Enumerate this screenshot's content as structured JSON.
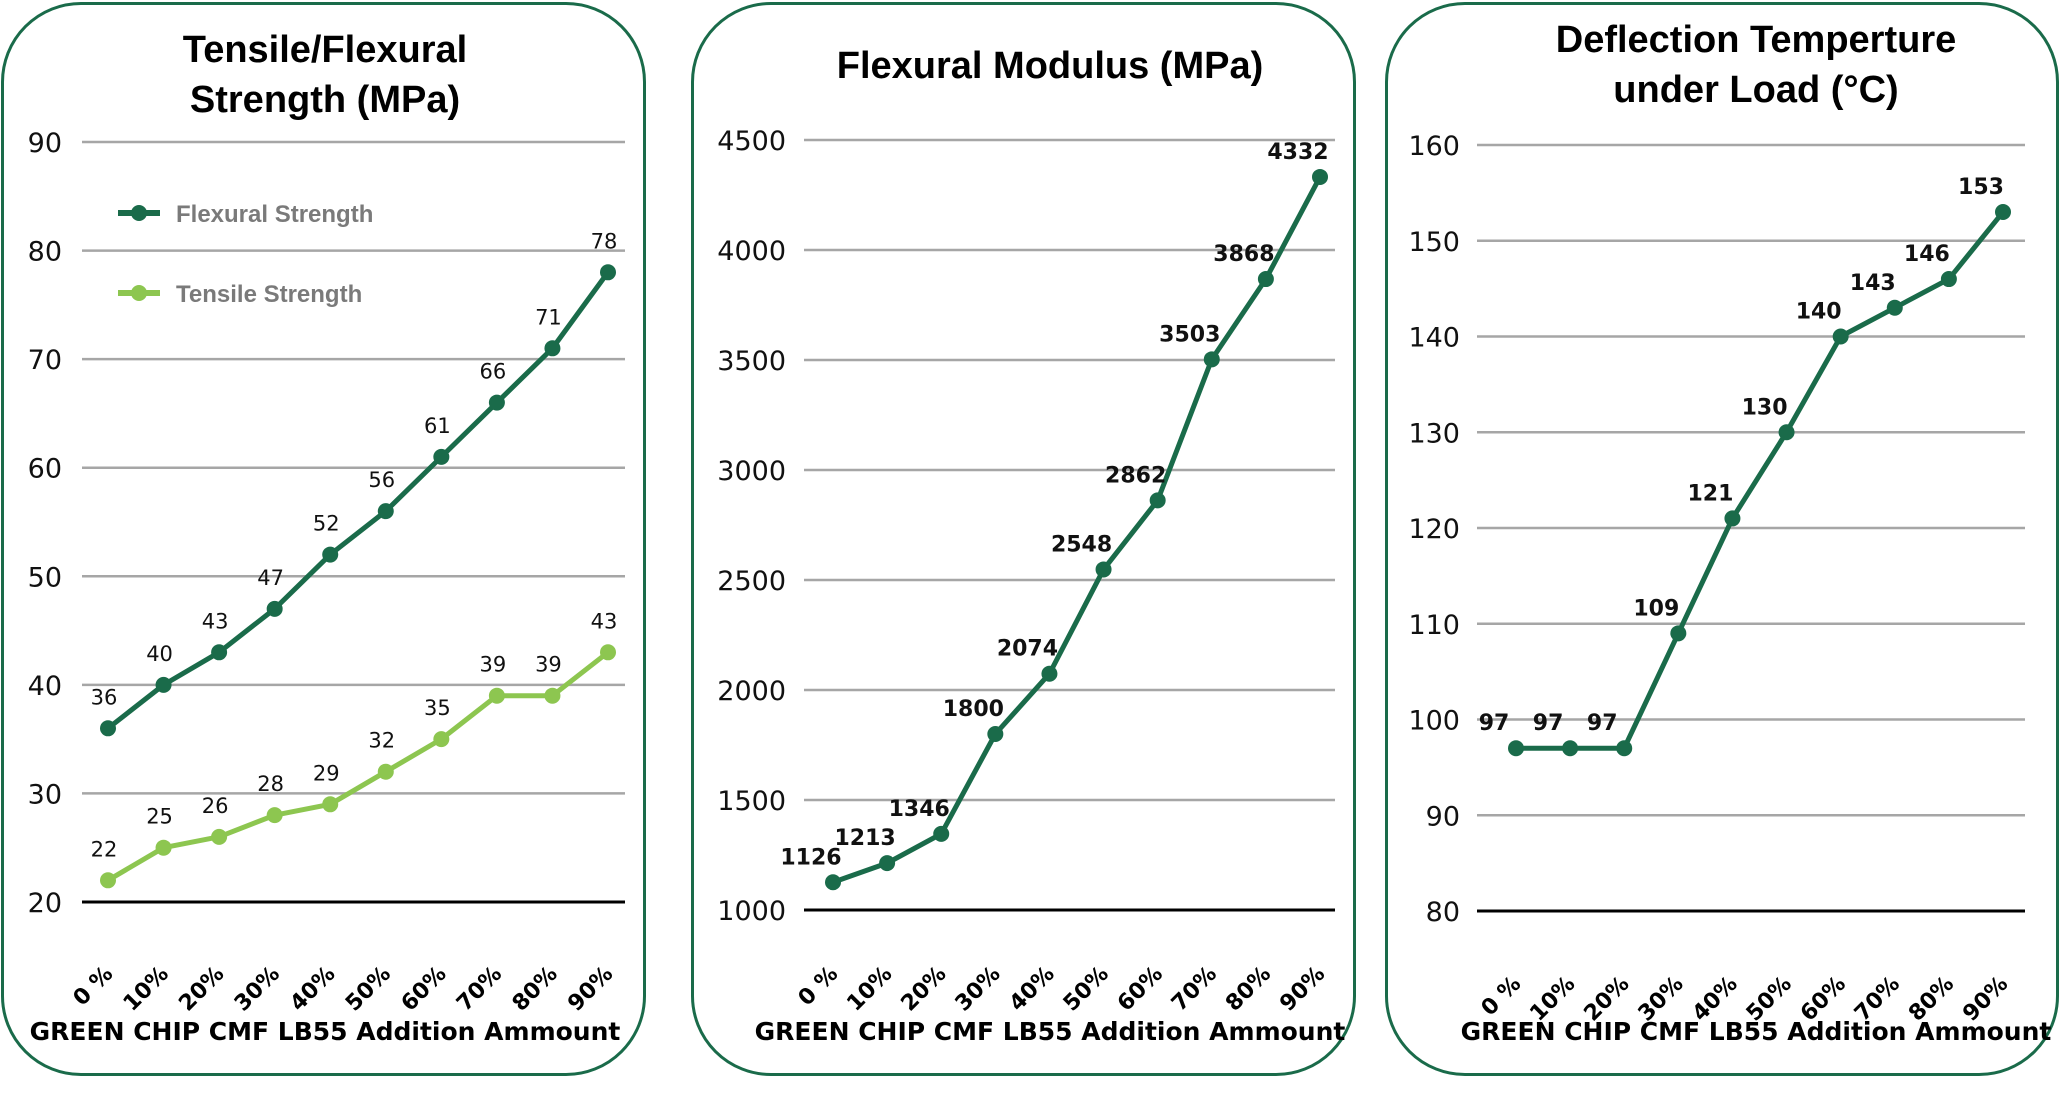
{
  "colors": {
    "dark_green": "#1a6b4a",
    "light_green": "#8dc650",
    "grid": "#a6a6a6",
    "border": "#1a6b4a"
  },
  "chart_data": [
    {
      "type": "line",
      "title": [
        "Tensile/Flexural",
        "Strength (MPa)"
      ],
      "xlabel": "GREEN CHIP CMF LB55 Addition Ammount",
      "ylabel": "",
      "categories": [
        "0 %",
        "10%",
        "20%",
        "30%",
        "40%",
        "50%",
        "60%",
        "70%",
        "80%",
        "90%"
      ],
      "ylim": [
        20,
        90
      ],
      "yticks": [
        20,
        30,
        40,
        50,
        60,
        70,
        80,
        90
      ],
      "grid": true,
      "legend": "top-left",
      "series": [
        {
          "name": "Flexural Strength",
          "color": "#1a6b4a",
          "values": [
            36,
            40,
            43,
            47,
            52,
            56,
            61,
            66,
            71,
            78
          ]
        },
        {
          "name": "Tensile Strength",
          "color": "#8dc650",
          "values": [
            22,
            25,
            26,
            28,
            29,
            32,
            35,
            39,
            39,
            43
          ]
        }
      ]
    },
    {
      "type": "line",
      "title": [
        "Flexural Modulus (MPa)"
      ],
      "xlabel": "GREEN CHIP CMF LB55 Addition Ammount",
      "ylabel": "",
      "categories": [
        "0 %",
        "10%",
        "20%",
        "30%",
        "40%",
        "50%",
        "60%",
        "70%",
        "80%",
        "90%"
      ],
      "ylim": [
        1000,
        4500
      ],
      "yticks": [
        1000,
        1500,
        2000,
        2500,
        3000,
        3500,
        4000,
        4500
      ],
      "grid": true,
      "legend": "none",
      "series": [
        {
          "name": "Flexural Modulus",
          "color": "#1a6b4a",
          "values": [
            1126,
            1213,
            1346,
            1800,
            2074,
            2548,
            2862,
            3503,
            3868,
            4332
          ]
        }
      ]
    },
    {
      "type": "line",
      "title": [
        "Deflection Temperture",
        "under Load (°C)"
      ],
      "xlabel": "GREEN CHIP CMF LB55 Addition Ammount",
      "ylabel": "",
      "categories": [
        "0 %",
        "10%",
        "20%",
        "30%",
        "40%",
        "50%",
        "60%",
        "70%",
        "80%",
        "90%"
      ],
      "ylim": [
        80,
        160
      ],
      "yticks": [
        80,
        90,
        100,
        110,
        120,
        130,
        140,
        150,
        160
      ],
      "grid": true,
      "legend": "none",
      "series": [
        {
          "name": "Deflection Temperature under Load",
          "color": "#1a6b4a",
          "values": [
            97,
            97,
            97,
            109,
            121,
            130,
            140,
            143,
            146,
            153
          ]
        }
      ]
    }
  ]
}
